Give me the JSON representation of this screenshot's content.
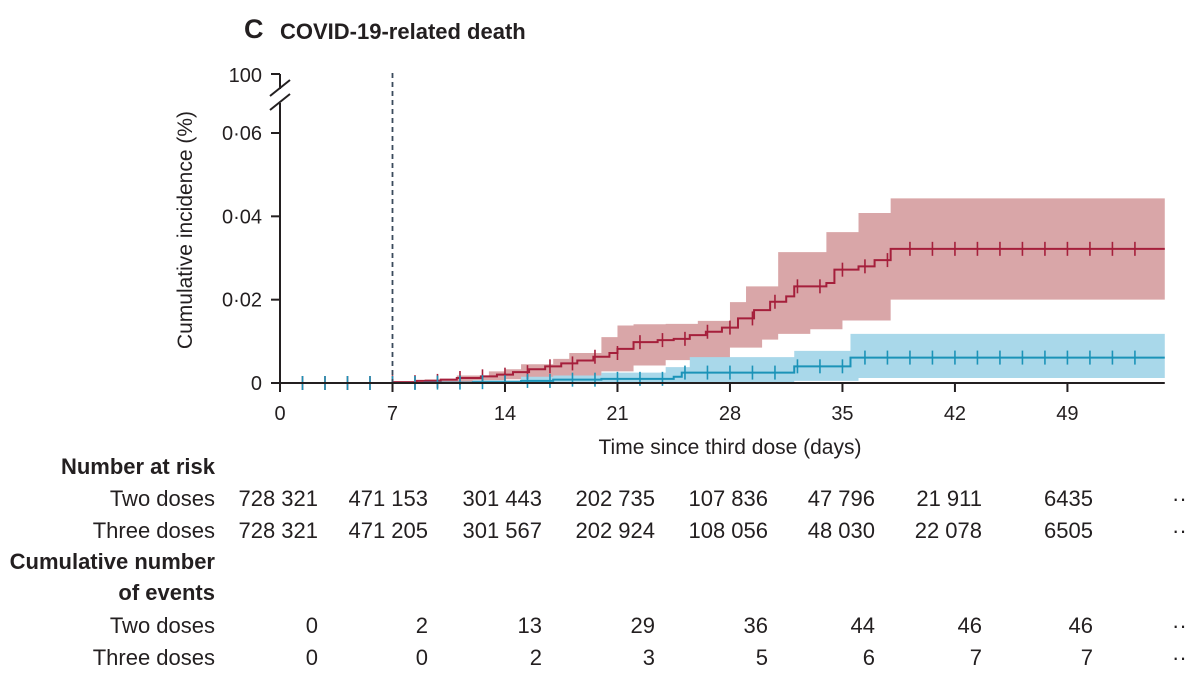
{
  "panel": {
    "letter": "C",
    "title": "COVID-19-related death"
  },
  "chart_data": {
    "type": "line",
    "title": "COVID-19-related death",
    "xlabel": "Time since third dose (days)",
    "ylabel": "Cumulative incidence (%)",
    "xlim": [
      0,
      54
    ],
    "ylim": [
      0,
      0.06
    ],
    "x_ticks": [
      0,
      7,
      14,
      21,
      28,
      35,
      42,
      49
    ],
    "x_tick_labels": [
      "0",
      "7",
      "14",
      "21",
      "28",
      "35",
      "42",
      "49"
    ],
    "y_ticks": [
      0,
      0.02,
      0.04,
      0.06
    ],
    "y_tick_labels": [
      "0",
      "0·02",
      "0·04",
      "0·06"
    ],
    "y_break_label": "100",
    "reference_line_x": 7,
    "grid": false,
    "legend": "none",
    "series": [
      {
        "color": "#a51f3b",
        "band_color": "#d9a6a8",
        "steps": [
          [
            0,
            0
          ],
          [
            7,
            0.0002
          ],
          [
            8.5,
            0.0005
          ],
          [
            10,
            0.0008
          ],
          [
            11,
            0.0012
          ],
          [
            12.5,
            0.0016
          ],
          [
            13.5,
            0.002
          ],
          [
            14.5,
            0.0026
          ],
          [
            15.5,
            0.0033
          ],
          [
            16.5,
            0.004
          ],
          [
            17.5,
            0.0047
          ],
          [
            18.5,
            0.0054
          ],
          [
            19.5,
            0.0063
          ],
          [
            20.5,
            0.0072
          ],
          [
            21,
            0.0082
          ],
          [
            22,
            0.0098
          ],
          [
            23.5,
            0.0103
          ],
          [
            24.5,
            0.0106
          ],
          [
            25.5,
            0.0115
          ],
          [
            26.5,
            0.0123
          ],
          [
            27.5,
            0.0133
          ],
          [
            28.5,
            0.0155
          ],
          [
            29.5,
            0.0175
          ],
          [
            30.5,
            0.0195
          ],
          [
            31.5,
            0.0208
          ],
          [
            32,
            0.0232
          ],
          [
            34,
            0.024
          ],
          [
            34.5,
            0.0272
          ],
          [
            36,
            0.028
          ],
          [
            37,
            0.0295
          ],
          [
            38,
            0.0322
          ],
          [
            54,
            0.0322
          ]
        ],
        "ci_upper": [
          [
            0,
            0
          ],
          [
            7,
            0.0003
          ],
          [
            9,
            0.0009
          ],
          [
            11,
            0.0018
          ],
          [
            13,
            0.0028
          ],
          [
            14,
            0.0033
          ],
          [
            15,
            0.0045
          ],
          [
            17,
            0.0058
          ],
          [
            18,
            0.0072
          ],
          [
            20,
            0.011
          ],
          [
            21,
            0.0138
          ],
          [
            22,
            0.0141
          ],
          [
            24,
            0.0142
          ],
          [
            26,
            0.0149
          ],
          [
            28,
            0.0194
          ],
          [
            29,
            0.0232
          ],
          [
            31,
            0.0314
          ],
          [
            34,
            0.0362
          ],
          [
            36,
            0.0408
          ],
          [
            37,
            0.0408
          ],
          [
            38,
            0.0443
          ],
          [
            54,
            0.0443
          ]
        ],
        "ci_lower": [
          [
            0,
            0
          ],
          [
            7,
            0
          ],
          [
            9,
            0.0002
          ],
          [
            12,
            0.0006
          ],
          [
            14,
            0.0009
          ],
          [
            16,
            0.0012
          ],
          [
            18,
            0.0018
          ],
          [
            20,
            0.0028
          ],
          [
            22,
            0.0042
          ],
          [
            24,
            0.0055
          ],
          [
            26,
            0.006
          ],
          [
            28,
            0.0085
          ],
          [
            30,
            0.0104
          ],
          [
            31,
            0.0118
          ],
          [
            33,
            0.0129
          ],
          [
            35,
            0.015
          ],
          [
            38,
            0.02
          ],
          [
            54,
            0.02
          ]
        ]
      },
      {
        "color": "#1b93b8",
        "band_color": "#a9d8ea",
        "steps": [
          [
            0,
            0
          ],
          [
            9,
            0.0001
          ],
          [
            12,
            0.0002
          ],
          [
            15,
            0.0005
          ],
          [
            17,
            0.0008
          ],
          [
            20,
            0.001
          ],
          [
            24.5,
            0.0015
          ],
          [
            25,
            0.0025
          ],
          [
            32,
            0.004
          ],
          [
            35.5,
            0.0061
          ],
          [
            54,
            0.0061
          ]
        ],
        "ci_upper": [
          [
            0,
            0
          ],
          [
            9,
            0.0002
          ],
          [
            12,
            0.0007
          ],
          [
            15,
            0.0015
          ],
          [
            17,
            0.0018
          ],
          [
            20,
            0.0025
          ],
          [
            24,
            0.0038
          ],
          [
            25.5,
            0.0062
          ],
          [
            32,
            0.0077
          ],
          [
            35.5,
            0.0118
          ],
          [
            54,
            0.0118
          ]
        ],
        "ci_lower": [
          [
            0,
            0
          ],
          [
            20,
            0
          ],
          [
            25,
            0.0002
          ],
          [
            32,
            0.0005
          ],
          [
            36,
            0.0012
          ],
          [
            54,
            0.0012
          ]
        ]
      }
    ]
  },
  "risk_table": {
    "heading_at_risk": "Number at risk",
    "heading_events_line1": "Cumulative number",
    "heading_events_line2": "of events",
    "more": "··",
    "at_risk": [
      {
        "label": "Two doses",
        "values": [
          "728 321",
          "471 153",
          "301 443",
          "202 735",
          "107 836",
          "47 796",
          "21 911",
          "6435"
        ]
      },
      {
        "label": "Three doses",
        "values": [
          "728 321",
          "471 205",
          "301 567",
          "202 924",
          "108 056",
          "48 030",
          "22 078",
          "6505"
        ]
      }
    ],
    "events": [
      {
        "label": "Two doses",
        "values": [
          "0",
          "2",
          "13",
          "29",
          "36",
          "44",
          "46",
          "46"
        ]
      },
      {
        "label": "Three doses",
        "values": [
          "0",
          "0",
          "2",
          "3",
          "5",
          "6",
          "7",
          "7"
        ]
      }
    ]
  }
}
